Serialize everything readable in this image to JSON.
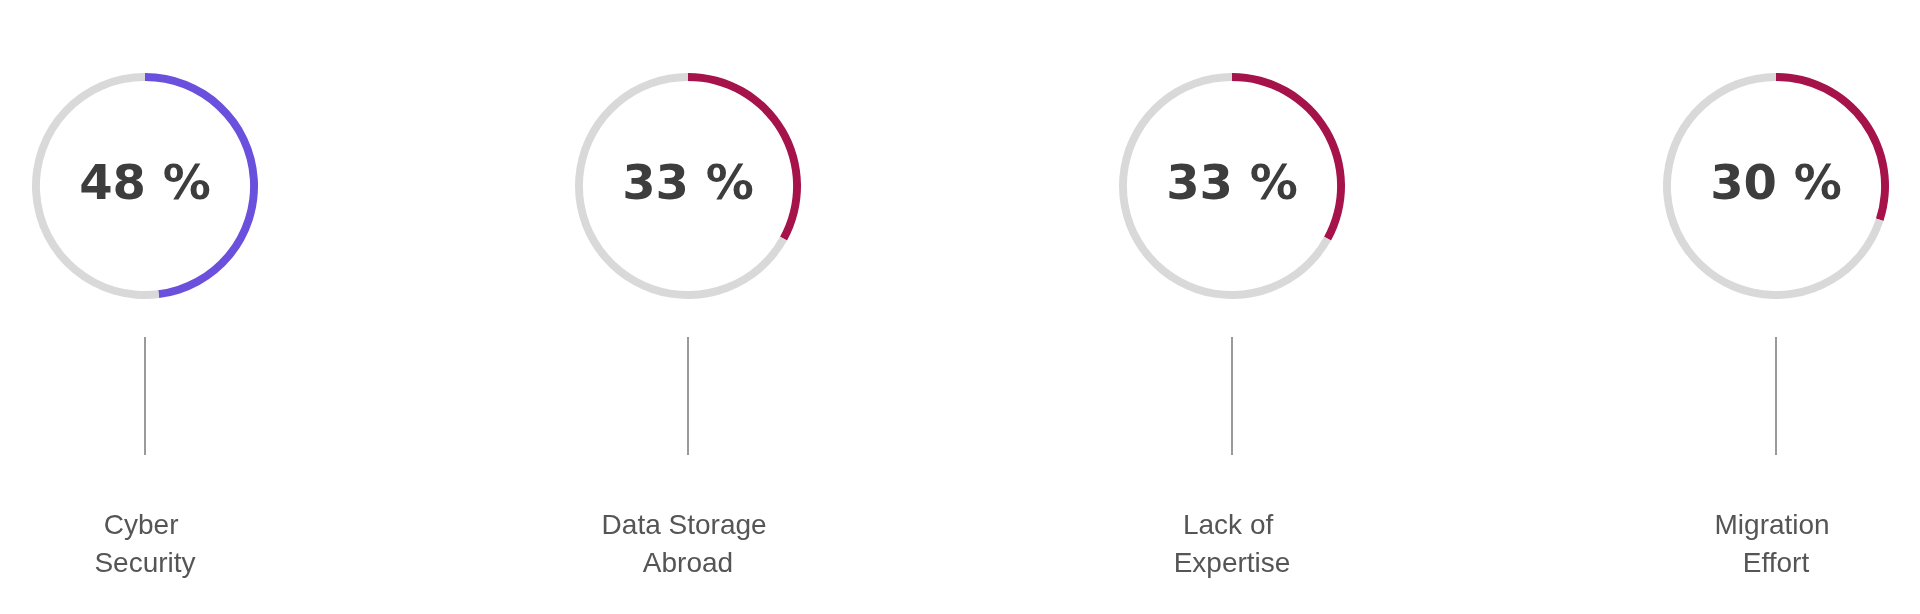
{
  "chart_data": [
    {
      "type": "donut",
      "xlabel": "Cyber Security",
      "categories": [
        null,
        null
      ],
      "values": [
        48,
        52
      ],
      "colors": [
        "#6a50dc",
        "#d9d9d9"
      ],
      "annotations": [
        "48 %"
      ]
    },
    {
      "type": "donut",
      "xlabel": "Data Storage Abroad",
      "categories": [
        null,
        null
      ],
      "values": [
        33,
        67
      ],
      "colors": [
        "#a6124a",
        "#d9d9d9"
      ],
      "annotations": [
        "33 %"
      ]
    },
    {
      "type": "donut",
      "xlabel": "Lack of Expertise",
      "categories": [
        null,
        null
      ],
      "values": [
        33,
        67
      ],
      "colors": [
        "#a6124a",
        "#d9d9d9"
      ],
      "annotations": [
        "33 %"
      ]
    },
    {
      "type": "donut",
      "xlabel": "Migration Effort",
      "categories": [
        null,
        null
      ],
      "values": [
        30,
        70
      ],
      "colors": [
        "#a6124a",
        "#d9d9d9"
      ],
      "annotations": [
        "30 %"
      ]
    }
  ]
}
